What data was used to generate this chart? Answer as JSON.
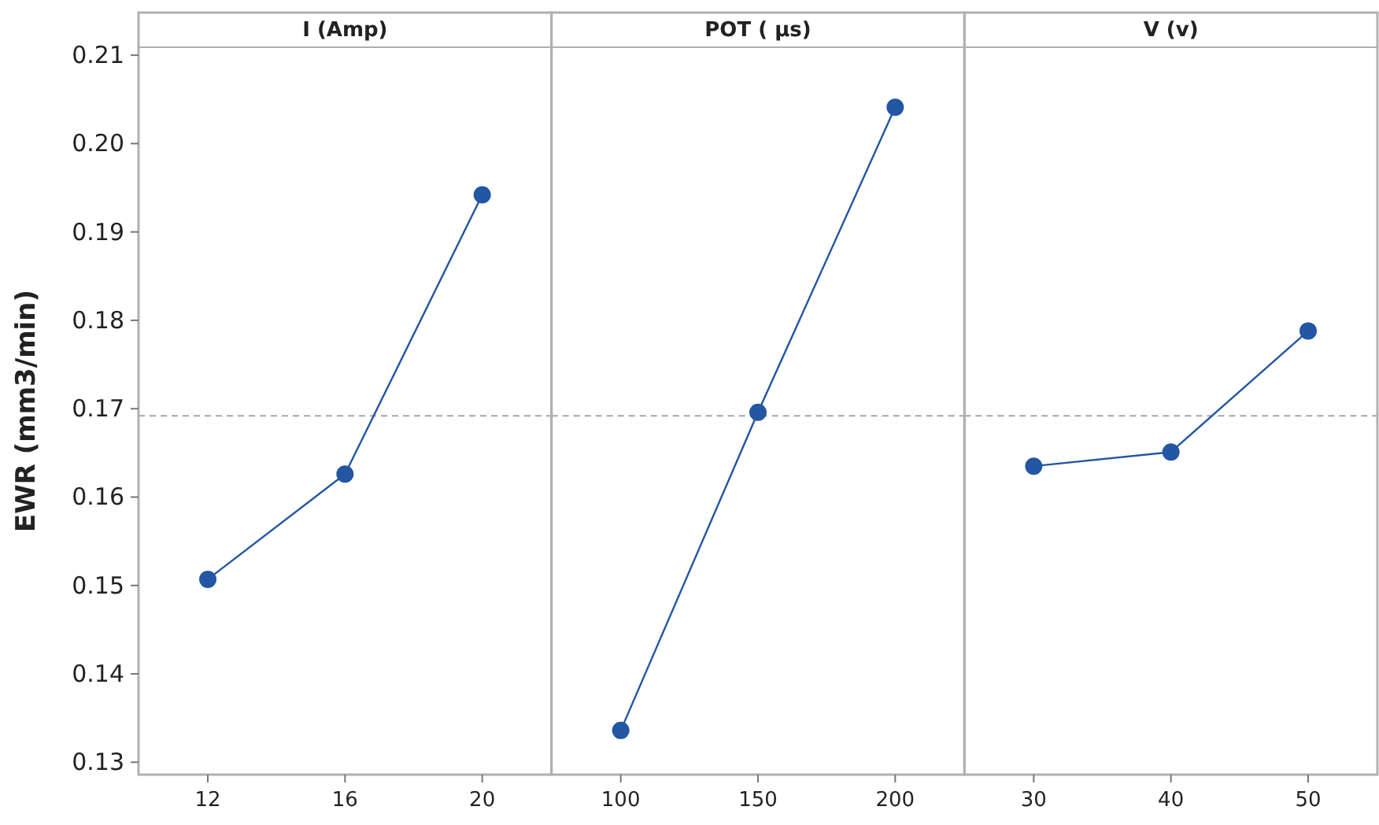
{
  "chart_data": [
    {
      "type": "line",
      "title": "I (Amp)",
      "ylabel": "EWR (mm3/min)",
      "categories": [
        "12",
        "16",
        "20"
      ],
      "series": [
        {
          "color": "#2356a3",
          "values": [
            0.1507,
            0.1626,
            0.1942
          ]
        }
      ],
      "ylim": [
        0.1286,
        0.2109
      ],
      "yticks": [
        0.13,
        0.14,
        0.15,
        0.16,
        0.17,
        0.18,
        0.19,
        {
          "value": 0.2,
          "label": "0.20"
        },
        0.21
      ],
      "ref_lines": [
        {
          "axis": "y",
          "value": 0.1692,
          "color": "#a6a6a6",
          "line_style": "dashed"
        }
      ],
      "marker": "circle",
      "line_style": "solid",
      "grid": false
    },
    {
      "type": "line",
      "title": "POT ( µs)",
      "categories": [
        "100",
        "150",
        "200"
      ],
      "series": [
        {
          "color": "#2356a3",
          "values": [
            0.1336,
            0.1696,
            0.2041
          ]
        }
      ],
      "ylim": [
        0.1286,
        0.2109
      ],
      "tick_labels": "x",
      "ref_lines": [
        {
          "axis": "y",
          "value": 0.1692,
          "color": "#a6a6a6",
          "line_style": "dashed"
        }
      ],
      "marker": "circle",
      "line_style": "solid",
      "grid": false
    },
    {
      "type": "line",
      "title": "V (v)",
      "categories": [
        "30",
        "40",
        "50"
      ],
      "series": [
        {
          "color": "#2356a3",
          "values": [
            0.1635,
            0.1651,
            0.1788
          ]
        }
      ],
      "ylim": [
        0.1286,
        0.2109
      ],
      "tick_labels": "x",
      "ref_lines": [
        {
          "axis": "y",
          "value": 0.1692,
          "color": "#a6a6a6",
          "line_style": "dashed"
        }
      ],
      "marker": "circle",
      "line_style": "solid",
      "grid": false
    }
  ]
}
